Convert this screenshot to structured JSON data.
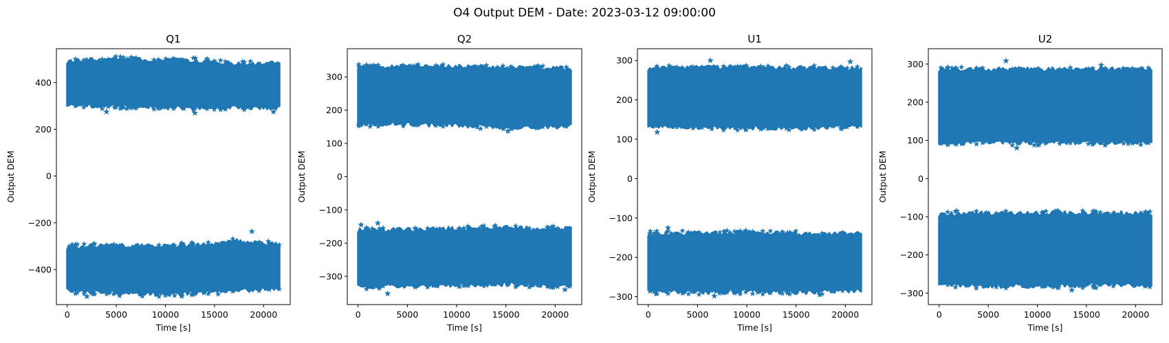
{
  "figure": {
    "suptitle": "O4 Output DEM - Date: 2023-03-12 09:00:00"
  },
  "colors": {
    "series": "#1f77b4",
    "axes": "#000000",
    "background": "#ffffff"
  },
  "chart_data": [
    {
      "type": "scatter",
      "title": "Q1",
      "xlabel": "Time [s]",
      "ylabel": "Output DEM",
      "marker": "star",
      "xlim": [
        -1100,
        22700
      ],
      "ylim": [
        -550,
        545
      ],
      "xticks": [
        0,
        5000,
        10000,
        15000,
        20000
      ],
      "yticks": [
        -400,
        -200,
        0,
        200,
        400
      ],
      "x_range": [
        0,
        21600
      ],
      "bands": [
        {
          "name": "upper",
          "top": [
            [
              0,
              490
            ],
            [
              5000,
              500
            ],
            [
              10000,
              495
            ],
            [
              15000,
              490
            ],
            [
              17000,
              478
            ],
            [
              21600,
              482
            ]
          ],
          "bottom": [
            [
              0,
              300
            ],
            [
              5000,
              300
            ],
            [
              10000,
              295
            ],
            [
              15000,
              295
            ],
            [
              21600,
              295
            ]
          ]
        },
        {
          "name": "lower",
          "top": [
            [
              0,
              -305
            ],
            [
              5000,
              -300
            ],
            [
              10000,
              -300
            ],
            [
              15000,
              -295
            ],
            [
              17000,
              -280
            ],
            [
              21600,
              -295
            ]
          ],
          "bottom": [
            [
              0,
              -490
            ],
            [
              5000,
              -500
            ],
            [
              10000,
              -505
            ],
            [
              15000,
              -495
            ],
            [
              21600,
              -480
            ]
          ]
        }
      ],
      "outliers": [
        [
          4000,
          275
        ],
        [
          13000,
          270
        ],
        [
          18800,
          -237
        ],
        [
          21000,
          275
        ],
        [
          2000,
          -515
        ],
        [
          10000,
          -510
        ]
      ]
    },
    {
      "type": "scatter",
      "title": "Q2",
      "xlabel": "Time [s]",
      "ylabel": "Output DEM",
      "marker": "star",
      "xlim": [
        -1100,
        22700
      ],
      "ylim": [
        -385,
        385
      ],
      "xticks": [
        0,
        5000,
        10000,
        15000,
        20000
      ],
      "yticks": [
        -300,
        -200,
        -100,
        0,
        100,
        200,
        300
      ],
      "x_range": [
        0,
        21600
      ],
      "bands": [
        {
          "name": "upper",
          "top": [
            [
              0,
              330
            ],
            [
              5000,
              332
            ],
            [
              10000,
              330
            ],
            [
              15000,
              328
            ],
            [
              21600,
              325
            ]
          ],
          "bottom": [
            [
              0,
              158
            ],
            [
              5000,
              160
            ],
            [
              10000,
              155
            ],
            [
              15000,
              150
            ],
            [
              21600,
              152
            ]
          ]
        },
        {
          "name": "lower",
          "top": [
            [
              0,
              -162
            ],
            [
              5000,
              -160
            ],
            [
              10000,
              -158
            ],
            [
              15000,
              -155
            ],
            [
              21600,
              -158
            ]
          ],
          "bottom": [
            [
              0,
              -330
            ],
            [
              5000,
              -328
            ],
            [
              10000,
              -325
            ],
            [
              15000,
              -322
            ],
            [
              21600,
              -330
            ]
          ]
        }
      ],
      "outliers": [
        [
          300,
          -145
        ],
        [
          2000,
          -140
        ],
        [
          15200,
          137
        ],
        [
          3000,
          -352
        ],
        [
          21000,
          -340
        ]
      ]
    },
    {
      "type": "scatter",
      "title": "U1",
      "xlabel": "Time [s]",
      "ylabel": "Output DEM",
      "marker": "star",
      "xlim": [
        -1100,
        22700
      ],
      "ylim": [
        -320,
        330
      ],
      "xticks": [
        0,
        5000,
        10000,
        15000,
        20000
      ],
      "yticks": [
        -300,
        -200,
        -100,
        0,
        100,
        200,
        300
      ],
      "x_range": [
        0,
        21600
      ],
      "bands": [
        {
          "name": "upper",
          "top": [
            [
              0,
              280
            ],
            [
              5000,
              282
            ],
            [
              10000,
              282
            ],
            [
              15000,
              280
            ],
            [
              21600,
              278
            ]
          ],
          "bottom": [
            [
              0,
              135
            ],
            [
              5000,
              132
            ],
            [
              10000,
              130
            ],
            [
              15000,
              130
            ],
            [
              21600,
              135
            ]
          ]
        },
        {
          "name": "lower",
          "top": [
            [
              0,
              -140
            ],
            [
              5000,
              -140
            ],
            [
              10000,
              -138
            ],
            [
              15000,
              -140
            ],
            [
              21600,
              -140
            ]
          ],
          "bottom": [
            [
              0,
              -285
            ],
            [
              5000,
              -288
            ],
            [
              10000,
              -285
            ],
            [
              15000,
              -288
            ],
            [
              21600,
              -282
            ]
          ]
        }
      ],
      "outliers": [
        [
          6300,
          300
        ],
        [
          20500,
          297
        ],
        [
          900,
          118
        ],
        [
          6700,
          -298
        ],
        [
          17400,
          -295
        ],
        [
          2000,
          -125
        ]
      ]
    },
    {
      "type": "scatter",
      "title": "U2",
      "xlabel": "Time [s]",
      "ylabel": "Output DEM",
      "marker": "star",
      "xlim": [
        -1100,
        22700
      ],
      "ylim": [
        -330,
        340
      ],
      "xticks": [
        0,
        5000,
        10000,
        15000,
        20000
      ],
      "yticks": [
        -300,
        -200,
        -100,
        0,
        100,
        200,
        300
      ],
      "x_range": [
        0,
        21600
      ],
      "bands": [
        {
          "name": "upper",
          "top": [
            [
              0,
              285
            ],
            [
              5000,
              285
            ],
            [
              10000,
              285
            ],
            [
              15000,
              285
            ],
            [
              21600,
              285
            ]
          ],
          "bottom": [
            [
              0,
              95
            ],
            [
              5000,
              95
            ],
            [
              10000,
              95
            ],
            [
              15000,
              95
            ],
            [
              21600,
              95
            ]
          ]
        },
        {
          "name": "lower",
          "top": [
            [
              0,
              -95
            ],
            [
              5000,
              -92
            ],
            [
              10000,
              -92
            ],
            [
              15000,
              -92
            ],
            [
              21600,
              -92
            ]
          ],
          "bottom": [
            [
              0,
              -278
            ],
            [
              5000,
              -280
            ],
            [
              10000,
              -280
            ],
            [
              15000,
              -278
            ],
            [
              21600,
              -278
            ]
          ]
        }
      ],
      "outliers": [
        [
          6800,
          308
        ],
        [
          16500,
          297
        ],
        [
          7900,
          80
        ],
        [
          1800,
          -85
        ],
        [
          13500,
          -292
        ]
      ]
    }
  ]
}
